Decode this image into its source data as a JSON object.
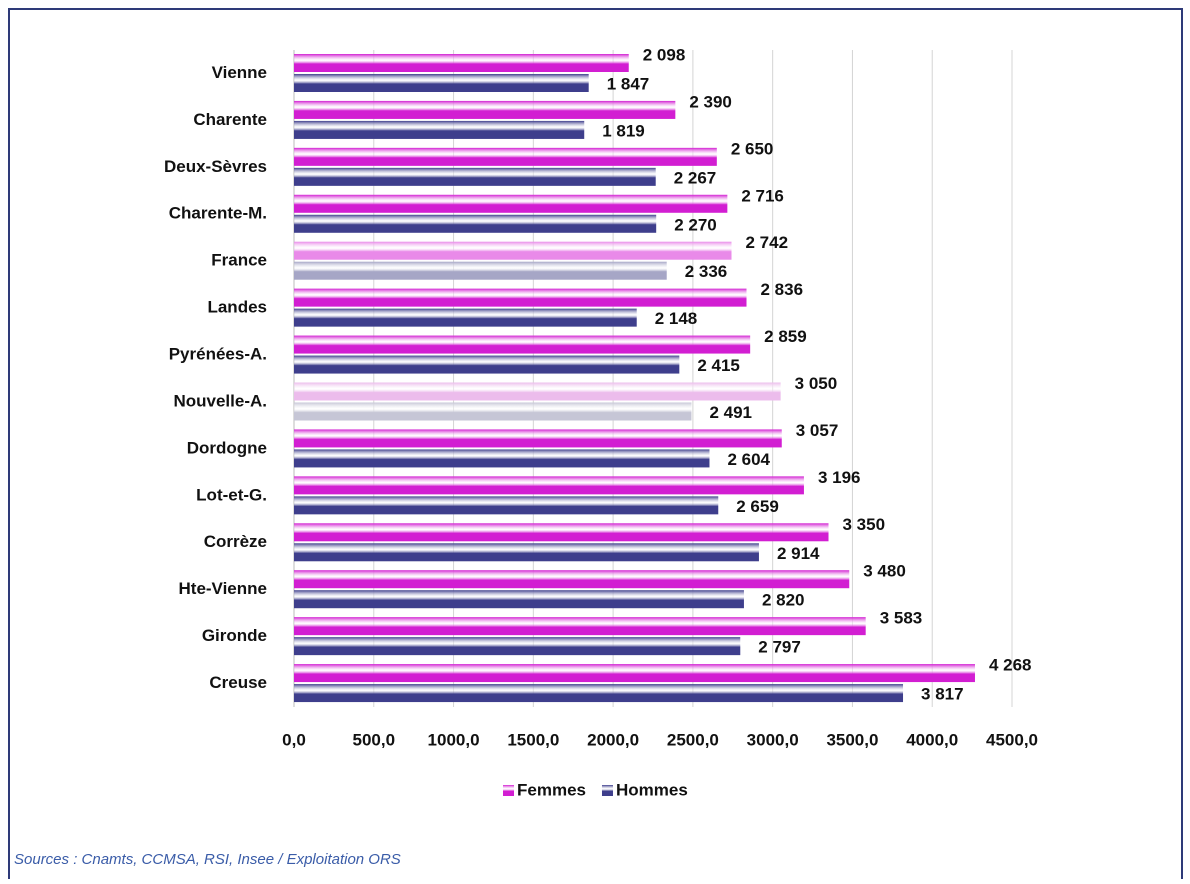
{
  "chart_data": {
    "type": "hbar",
    "categories": [
      "Vienne",
      "Charente",
      "Deux-Sèvres",
      "Charente-M.",
      "France",
      "Landes",
      "Pyrénées-A.",
      "Nouvelle-A.",
      "Dordogne",
      "Lot-et-G.",
      "Corrèze",
      "Hte-Vienne",
      "Gironde",
      "Creuse"
    ],
    "series": [
      {
        "name": "Femmes",
        "color": "#d21ed2",
        "colors": [
          "#d21ed2",
          "#d21ed2",
          "#d21ed2",
          "#d21ed2",
          "#e98ae9",
          "#d21ed2",
          "#d21ed2",
          "#ecbcec",
          "#d21ed2",
          "#d21ed2",
          "#d21ed2",
          "#d21ed2",
          "#d21ed2",
          "#d21ed2"
        ],
        "values": [
          2098,
          2390,
          2650,
          2716,
          2742,
          2836,
          2859,
          3050,
          3057,
          3196,
          3350,
          3480,
          3583,
          4268
        ],
        "value_labels": [
          "2 098",
          "2 390",
          "2 650",
          "2 716",
          "2 742",
          "2 836",
          "2 859",
          "3 050",
          "3 057",
          "3 196",
          "3 350",
          "3 480",
          "3 583",
          "4 268"
        ]
      },
      {
        "name": "Hommes",
        "color": "#3e3e8c",
        "colors": [
          "#3e3e8c",
          "#3e3e8c",
          "#3e3e8c",
          "#3e3e8c",
          "#a6a6c6",
          "#3e3e8c",
          "#3e3e8c",
          "#c6c6d6",
          "#3e3e8c",
          "#3e3e8c",
          "#3e3e8c",
          "#3e3e8c",
          "#3e3e8c",
          "#3e3e8c"
        ],
        "values": [
          1847,
          1819,
          2267,
          2270,
          2336,
          2148,
          2415,
          2491,
          2604,
          2659,
          2914,
          2820,
          2797,
          3817
        ],
        "value_labels": [
          "1 847",
          "1 819",
          "2 267",
          "2 270",
          "2 336",
          "2 148",
          "2 415",
          "2 491",
          "2 604",
          "2 659",
          "2 914",
          "2 820",
          "2 797",
          "3 817"
        ]
      }
    ],
    "xlim": [
      0,
      4500
    ],
    "xticks": [
      {
        "value": 0,
        "label": "0,0"
      },
      {
        "value": 500,
        "label": "500,0"
      },
      {
        "value": 1000,
        "label": "1000,0"
      },
      {
        "value": 1500,
        "label": "1500,0"
      },
      {
        "value": 2000,
        "label": "2000,0"
      },
      {
        "value": 2500,
        "label": "2500,0"
      },
      {
        "value": 3000,
        "label": "3000,0"
      },
      {
        "value": 3500,
        "label": "3500,0"
      },
      {
        "value": 4000,
        "label": "4000,0"
      },
      {
        "value": 4500,
        "label": "4500,0"
      }
    ],
    "grid": true,
    "legend": "bottom",
    "source": "Sources : Cnamts, CCMSA, RSI, Insee / Exploitation ORS"
  }
}
